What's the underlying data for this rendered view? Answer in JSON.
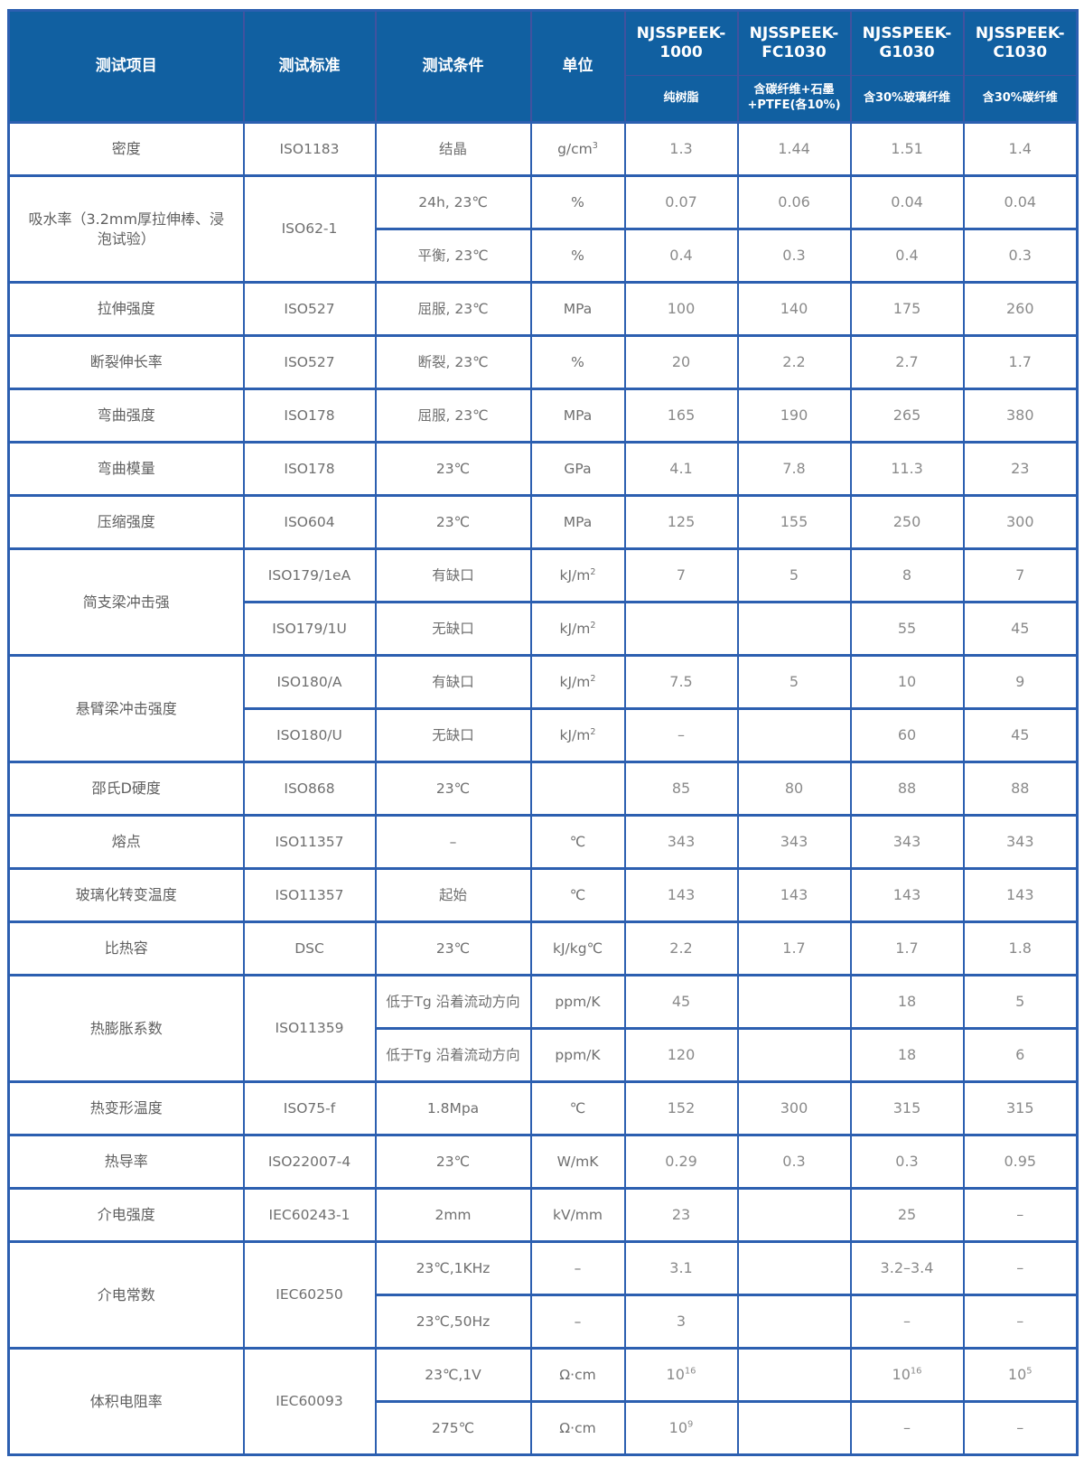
{
  "page": {
    "background": "#ffffff"
  },
  "table": {
    "colors": {
      "header_bg": "#1160a1",
      "header_divider": "#41529f",
      "grid": "#2c5fb0",
      "header_text": "#ffffff",
      "label_text": "#606060",
      "value_text": "#8a8a8a"
    },
    "header": {
      "item": "测试项目",
      "standard": "测试标准",
      "condition": "测试条件",
      "unit": "单位"
    },
    "products": [
      {
        "name": "NJSSPEEK-1000",
        "subtitle": "纯树脂"
      },
      {
        "name": "NJSSPEEK-FC1030",
        "subtitle": "含碳纤维+石墨+PTFE(各10%)"
      },
      {
        "name": "NJSSPEEK-G1030",
        "subtitle": "含30%玻璃纤维"
      },
      {
        "name": "NJSSPEEK-C1030",
        "subtitle": "含30%碳纤维"
      }
    ],
    "groups": [
      {
        "item": "密度",
        "standard": "ISO1183",
        "rows": [
          {
            "condition": "结晶",
            "unit": "g/cm^3",
            "values": [
              "1.3",
              "1.44",
              "1.51",
              "1.4"
            ]
          }
        ]
      },
      {
        "item": "吸水率（3.2mm厚拉伸棒、浸泡试验）",
        "standard": "ISO62-1",
        "rows": [
          {
            "condition": "24h, 23℃",
            "unit": "%",
            "values": [
              "0.07",
              "0.06",
              "0.04",
              "0.04"
            ]
          },
          {
            "condition": "平衡, 23℃",
            "unit": "%",
            "values": [
              "0.4",
              "0.3",
              "0.4",
              "0.3"
            ]
          }
        ]
      },
      {
        "item": "拉伸强度",
        "standard": "ISO527",
        "rows": [
          {
            "condition": "屈服, 23℃",
            "unit": "MPa",
            "values": [
              "100",
              "140",
              "175",
              "260"
            ]
          }
        ]
      },
      {
        "item": "断裂伸长率",
        "standard": "ISO527",
        "rows": [
          {
            "condition": "断裂, 23℃",
            "unit": "%",
            "values": [
              "20",
              "2.2",
              "2.7",
              "1.7"
            ]
          }
        ]
      },
      {
        "item": "弯曲强度",
        "standard": "ISO178",
        "rows": [
          {
            "condition": "屈服, 23℃",
            "unit": "MPa",
            "values": [
              "165",
              "190",
              "265",
              "380"
            ]
          }
        ]
      },
      {
        "item": "弯曲模量",
        "standard": "ISO178",
        "rows": [
          {
            "condition": "23℃",
            "unit": "GPa",
            "values": [
              "4.1",
              "7.8",
              "11.3",
              "23"
            ]
          }
        ]
      },
      {
        "item": "压缩强度",
        "standard": "ISO604",
        "rows": [
          {
            "condition": "23℃",
            "unit": "MPa",
            "values": [
              "125",
              "155",
              "250",
              "300"
            ]
          }
        ]
      },
      {
        "item": "简支梁冲击强",
        "rows": [
          {
            "standard": "ISO179/1eA",
            "condition": "有缺口",
            "unit": "kJ/m^2",
            "values": [
              "7",
              "5",
              "8",
              "7"
            ]
          },
          {
            "standard": "ISO179/1U",
            "condition": "无缺口",
            "unit": "kJ/m^2",
            "values": [
              "",
              "",
              "55",
              "45"
            ]
          }
        ]
      },
      {
        "item": "悬臂梁冲击强度",
        "rows": [
          {
            "standard": "ISO180/A",
            "condition": "有缺口",
            "unit": "kJ/m^2",
            "values": [
              "7.5",
              "5",
              "10",
              "9"
            ]
          },
          {
            "standard": "ISO180/U",
            "condition": "无缺口",
            "unit": "kJ/m^2",
            "values": [
              "–",
              "",
              "60",
              "45"
            ]
          }
        ]
      },
      {
        "item": "邵氏D硬度",
        "standard": "ISO868",
        "rows": [
          {
            "condition": "23℃",
            "unit": "",
            "values": [
              "85",
              "80",
              "88",
              "88"
            ]
          }
        ]
      },
      {
        "item": "熔点",
        "standard": "ISO11357",
        "rows": [
          {
            "condition": "–",
            "unit": "℃",
            "values": [
              "343",
              "343",
              "343",
              "343"
            ]
          }
        ]
      },
      {
        "item": "玻璃化转变温度",
        "standard": "ISO11357",
        "rows": [
          {
            "condition": "起始",
            "unit": "℃",
            "values": [
              "143",
              "143",
              "143",
              "143"
            ]
          }
        ]
      },
      {
        "item": "比热容",
        "standard": "DSC",
        "rows": [
          {
            "condition": "23℃",
            "unit": "kJ/kg℃",
            "values": [
              "2.2",
              "1.7",
              "1.7",
              "1.8"
            ]
          }
        ]
      },
      {
        "item": "热膨胀系数",
        "standard": "ISO11359",
        "rows": [
          {
            "condition": "低于Tg 沿着流动方向",
            "unit": "ppm/K",
            "values": [
              "45",
              "",
              "18",
              "5"
            ]
          },
          {
            "condition": "低于Tg 沿着流动方向",
            "unit": "ppm/K",
            "values": [
              "120",
              "",
              "18",
              "6"
            ]
          }
        ]
      },
      {
        "item": "热变形温度",
        "standard": "ISO75-f",
        "rows": [
          {
            "condition": "1.8Mpa",
            "unit": "℃",
            "values": [
              "152",
              "300",
              "315",
              "315"
            ]
          }
        ]
      },
      {
        "item": "热导率",
        "standard": "ISO22007-4",
        "rows": [
          {
            "condition": "23℃",
            "unit": "W/mK",
            "values": [
              "0.29",
              "0.3",
              "0.3",
              "0.95"
            ]
          }
        ]
      },
      {
        "item": "介电强度",
        "standard": "IEC60243-1",
        "rows": [
          {
            "condition": "2mm",
            "unit": "kV/mm",
            "values": [
              "23",
              "",
              "25",
              "–"
            ]
          }
        ]
      },
      {
        "item": "介电常数",
        "standard": "IEC60250",
        "rows": [
          {
            "condition": "23℃,1KHz",
            "unit": "–",
            "values": [
              "3.1",
              "",
              "3.2–3.4",
              "–"
            ]
          },
          {
            "condition": "23℃,50Hz",
            "unit": "–",
            "values": [
              "3",
              "",
              "–",
              "–"
            ]
          }
        ]
      },
      {
        "item": "体积电阻率",
        "standard": "IEC60093",
        "rows": [
          {
            "condition": "23℃,1V",
            "unit": "Ω·cm",
            "values": [
              "10^16",
              "",
              "10^16",
              "10^5"
            ]
          },
          {
            "condition": "275℃",
            "unit": "Ω·cm",
            "values": [
              "10^9",
              "",
              "–",
              "–"
            ]
          }
        ]
      }
    ]
  }
}
